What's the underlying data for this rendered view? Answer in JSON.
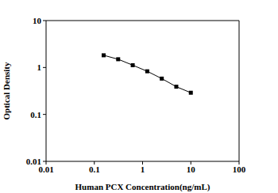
{
  "chart_data": {
    "type": "line",
    "x_label": "Human PCX Concentration(ng/mL)",
    "y_label": "Optical Density",
    "x": [
      0.156,
      0.312,
      0.625,
      1.25,
      2.5,
      5,
      10
    ],
    "values": [
      1.82,
      1.5,
      1.12,
      0.83,
      0.58,
      0.39,
      0.29
    ],
    "xlim": [
      0.01,
      100
    ],
    "ylim": [
      0.01,
      10
    ],
    "xticks": [
      0.01,
      0.1,
      1,
      10,
      100
    ],
    "yticks": [
      0.01,
      0.1,
      1,
      10
    ],
    "log": true,
    "marker": "square",
    "color": "#000000",
    "grid": false
  }
}
